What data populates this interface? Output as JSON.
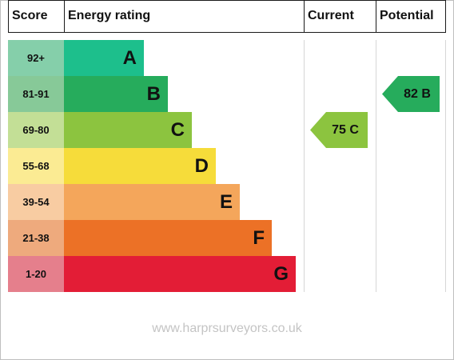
{
  "headers": {
    "score": "Score",
    "rating": "Energy rating",
    "current": "Current",
    "potential": "Potential"
  },
  "chart_data": {
    "type": "bar",
    "bands": [
      {
        "score_range": "92+",
        "letter": "A",
        "color": "#1dbf8c",
        "score_color": "#85cfaa"
      },
      {
        "score_range": "81-91",
        "letter": "B",
        "color": "#26ac5c",
        "score_color": "#87c998"
      },
      {
        "score_range": "69-80",
        "letter": "C",
        "color": "#8cc43f",
        "score_color": "#c3df96"
      },
      {
        "score_range": "55-68",
        "letter": "D",
        "color": "#f6dc3a",
        "score_color": "#fbeb93"
      },
      {
        "score_range": "39-54",
        "letter": "E",
        "color": "#f4a65b",
        "score_color": "#f8cca2"
      },
      {
        "score_range": "21-38",
        "letter": "F",
        "color": "#ec7126",
        "score_color": "#eeaa7d"
      },
      {
        "score_range": "1-20",
        "letter": "G",
        "color": "#e31d36",
        "score_color": "#e57f8c"
      }
    ],
    "current": {
      "value": 75,
      "label": "75 C",
      "band_index": 2,
      "color": "#8cc43f",
      "text_color": "#111111"
    },
    "potential": {
      "value": 82,
      "label": "82 B",
      "band_index": 1,
      "color": "#26ac5c",
      "text_color": "#111111"
    }
  },
  "watermark": "www.harprsurveyors.co.uk"
}
